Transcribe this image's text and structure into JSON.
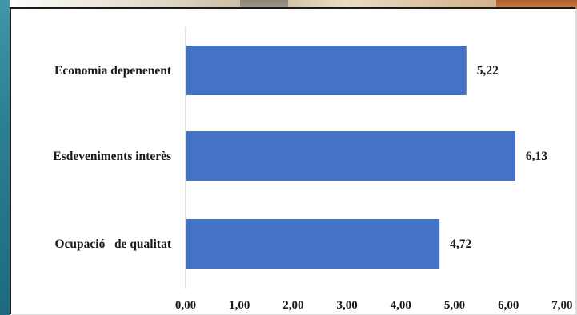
{
  "chart_data": {
    "type": "bar",
    "orientation": "horizontal",
    "categories": [
      "Economia depenenent",
      "Esdeveniments interès",
      "Ocupació   de qualitat"
    ],
    "values": [
      5.22,
      6.13,
      4.72
    ],
    "value_labels": [
      "5,22",
      "6,13",
      "4,72"
    ],
    "xlim": [
      0,
      7
    ],
    "x_ticks": [
      0,
      1,
      2,
      3,
      4,
      5,
      6,
      7
    ],
    "x_tick_labels": [
      "0,00",
      "1,00",
      "2,00",
      "3,00",
      "4,00",
      "5,00",
      "6,00",
      "7,00"
    ],
    "title": "",
    "xlabel": "",
    "ylabel": "",
    "grid": false,
    "legend": "none",
    "colors": {
      "bar": "#4472C4",
      "axis": "#d9d9d9",
      "text": "#1a1a1a"
    }
  }
}
